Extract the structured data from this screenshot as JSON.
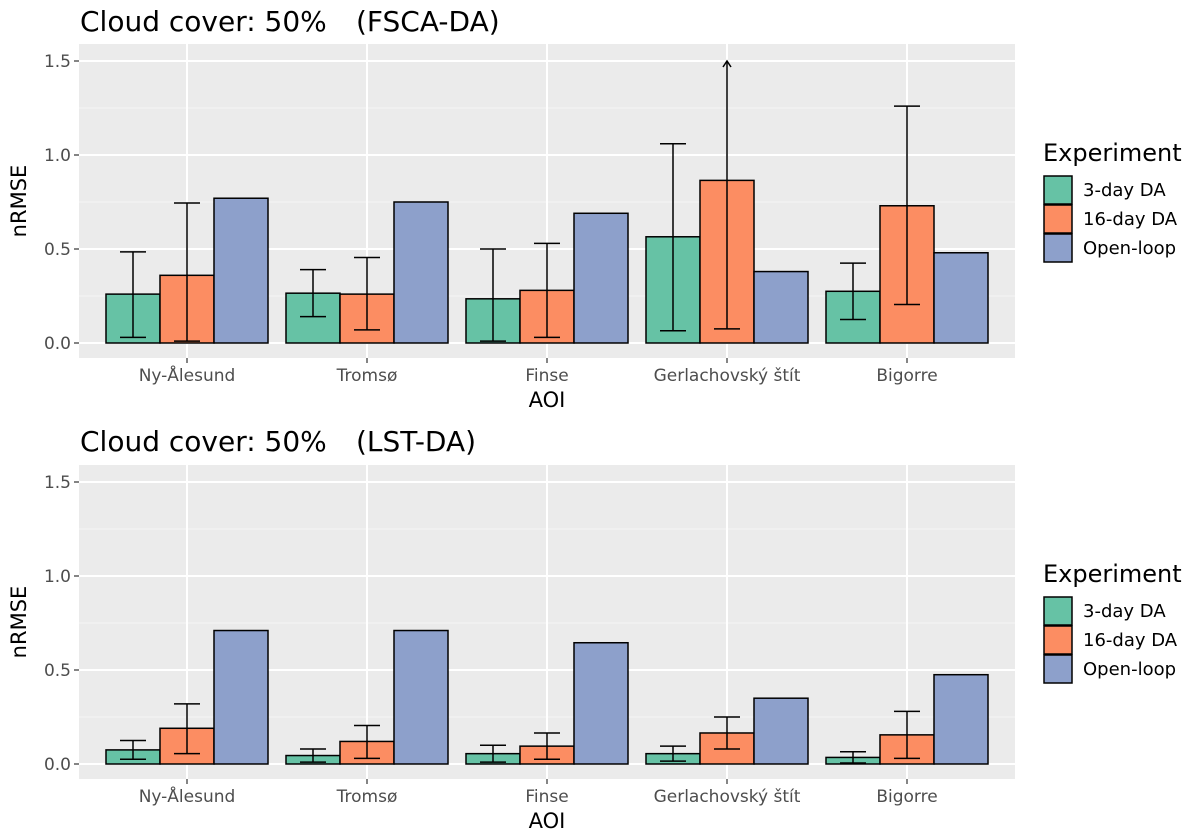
{
  "chart_data": [
    {
      "type": "bar",
      "title_main": "Cloud cover: 50%",
      "title_suffix": "(FSCA-DA)",
      "xlabel": "AOI",
      "ylabel": "nRMSE",
      "ylim": [
        0,
        1.5
      ],
      "yticks": [
        "0.0",
        "0.5",
        "1.0",
        "1.5"
      ],
      "grid": true,
      "legend_position": "right",
      "legend_title": "Experiment",
      "categories": [
        "Ny-Ålesund",
        "Tromsø",
        "Finse",
        "Gerlachovský štít",
        "Bigorre"
      ],
      "series": [
        {
          "name": "3-day DA",
          "color": "#66c2a5",
          "values": [
            0.26,
            0.265,
            0.235,
            0.565,
            0.275
          ],
          "err_low": [
            0.03,
            0.14,
            0.01,
            0.065,
            0.125
          ],
          "err_high": [
            0.485,
            0.39,
            0.5,
            1.06,
            0.425
          ]
        },
        {
          "name": "16-day DA",
          "color": "#fc8d62",
          "values": [
            0.36,
            0.26,
            0.28,
            0.865,
            0.73
          ],
          "err_low": [
            0.01,
            0.07,
            0.03,
            0.075,
            0.205
          ],
          "err_high": [
            0.745,
            0.455,
            0.53,
            1.5,
            1.26
          ],
          "err_high_clipped": [
            false,
            false,
            false,
            true,
            false
          ]
        },
        {
          "name": "Open-loop",
          "color": "#8da0cb",
          "values": [
            0.77,
            0.75,
            0.69,
            0.38,
            0.48
          ]
        }
      ]
    },
    {
      "type": "bar",
      "title_main": "Cloud cover: 50%",
      "title_suffix": "(LST-DA)",
      "xlabel": "AOI",
      "ylabel": "nRMSE",
      "ylim": [
        0,
        1.5
      ],
      "yticks": [
        "0.0",
        "0.5",
        "1.0",
        "1.5"
      ],
      "grid": true,
      "legend_position": "right",
      "legend_title": "Experiment",
      "categories": [
        "Ny-Ålesund",
        "Tromsø",
        "Finse",
        "Gerlachovský štít",
        "Bigorre"
      ],
      "series": [
        {
          "name": "3-day DA",
          "color": "#66c2a5",
          "values": [
            0.075,
            0.045,
            0.055,
            0.055,
            0.035
          ],
          "err_low": [
            0.025,
            0.01,
            0.01,
            0.015,
            0.005
          ],
          "err_high": [
            0.125,
            0.08,
            0.1,
            0.095,
            0.065
          ]
        },
        {
          "name": "16-day DA",
          "color": "#fc8d62",
          "values": [
            0.19,
            0.12,
            0.095,
            0.165,
            0.155
          ],
          "err_low": [
            0.055,
            0.03,
            0.025,
            0.08,
            0.03
          ],
          "err_high": [
            0.32,
            0.205,
            0.165,
            0.25,
            0.28
          ]
        },
        {
          "name": "Open-loop",
          "color": "#8da0cb",
          "values": [
            0.71,
            0.71,
            0.645,
            0.35,
            0.475
          ]
        }
      ]
    }
  ]
}
